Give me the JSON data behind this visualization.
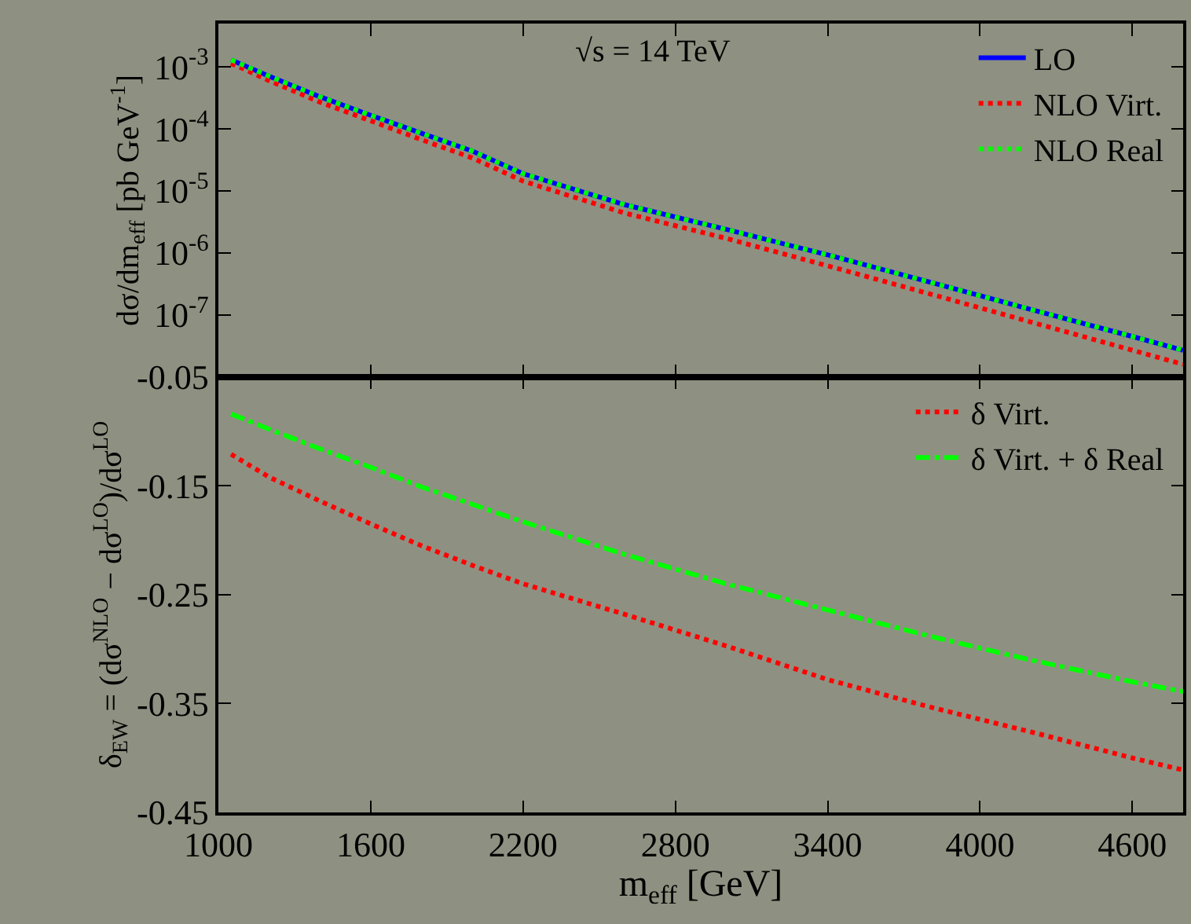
{
  "chart_data": [
    {
      "type": "line",
      "log": "y",
      "grid": false,
      "legend": "top right",
      "tick_labels": "y",
      "x": [
        1050,
        1200,
        1400,
        1600,
        1800,
        2000,
        2200,
        2600,
        3000,
        3400,
        3800,
        4200,
        4600,
        4800
      ],
      "xlim": [
        1000,
        4800
      ],
      "xticks": [
        1000,
        1600,
        2200,
        2800,
        3400,
        4000,
        4600
      ],
      "ylim": [
        1e-08,
        0.005
      ],
      "yticks": [
        {
          "value": 0.001,
          "label": "10$^{-3}$"
        },
        {
          "value": 0.0001,
          "label": "10$^{-4}$"
        },
        {
          "value": 1e-05,
          "label": "10$^{-5}$"
        },
        {
          "value": 1e-06,
          "label": "10$^{-6}$"
        },
        {
          "value": 1e-07,
          "label": "10$^{-7}$"
        }
      ],
      "ylabel": "dσ/dm$_{eff}$ [pb GeV$^{-1}$]",
      "annotations": [
        "√s = 14 TeV"
      ],
      "series": [
        {
          "name": "LO",
          "color": "#0000ff",
          "line_style": "solid",
          "values": [
            0.0013,
            0.00071,
            0.00033,
            0.000166,
            8.5e-05,
            4.4e-05,
            1.9e-05,
            6e-06,
            2.4e-06,
            9.3e-07,
            3.4e-07,
            1.23e-07,
            4.5e-08,
            2.7e-08
          ]
        },
        {
          "name": "NLO Virt.",
          "color": "#ff0000",
          "line_style": "dotted",
          "values": [
            0.00114,
            0.0006,
            0.00027,
            0.000135,
            6.7e-05,
            3.4e-05,
            1.44e-05,
            4.4e-06,
            1.72e-06,
            6.2e-07,
            2.2e-07,
            7.7e-08,
            2.7e-08,
            1.6e-08
          ]
        },
        {
          "name": "NLO Real",
          "color": "#00ff00",
          "line_style": "dotted",
          "values": [
            0.0013,
            0.00071,
            0.00033,
            0.000166,
            8.5e-05,
            4.4e-05,
            1.9e-05,
            6e-06,
            2.4e-06,
            9.3e-07,
            3.4e-07,
            1.23e-07,
            4.5e-08,
            2.7e-08
          ]
        }
      ]
    },
    {
      "type": "line",
      "grid": false,
      "legend": "top right",
      "x": [
        1050,
        1200,
        1400,
        1600,
        1800,
        2000,
        2200,
        2600,
        3000,
        3400,
        3800,
        4200,
        4600,
        4800
      ],
      "xlim": [
        1000,
        4800
      ],
      "xticks": [
        1000,
        1600,
        2200,
        2800,
        3400,
        4000,
        4600
      ],
      "ylim": [
        -0.45,
        -0.05
      ],
      "yticks": [
        -0.45,
        -0.35,
        -0.25,
        -0.15,
        -0.05
      ],
      "xlabel": "m$_{eff}$ [GeV]",
      "ylabel": "δ$_{EW}$ = (dσ$^{NLO}$ − dσ$^{LO}$)/dσ$^{LO}$",
      "series": [
        {
          "name": "δ Virt.",
          "color": "#ff0000",
          "line_style": "dotted",
          "values": [
            -0.121,
            -0.142,
            -0.164,
            -0.185,
            -0.205,
            -0.223,
            -0.24,
            -0.268,
            -0.297,
            -0.328,
            -0.353,
            -0.376,
            -0.4,
            -0.411
          ]
        },
        {
          "name": "δ Virt. + δ Real",
          "color": "#00ff00",
          "line_style": "dashed",
          "values": [
            -0.084,
            -0.098,
            -0.116,
            -0.133,
            -0.151,
            -0.167,
            -0.183,
            -0.213,
            -0.24,
            -0.264,
            -0.288,
            -0.31,
            -0.33,
            -0.339
          ]
        }
      ]
    }
  ]
}
